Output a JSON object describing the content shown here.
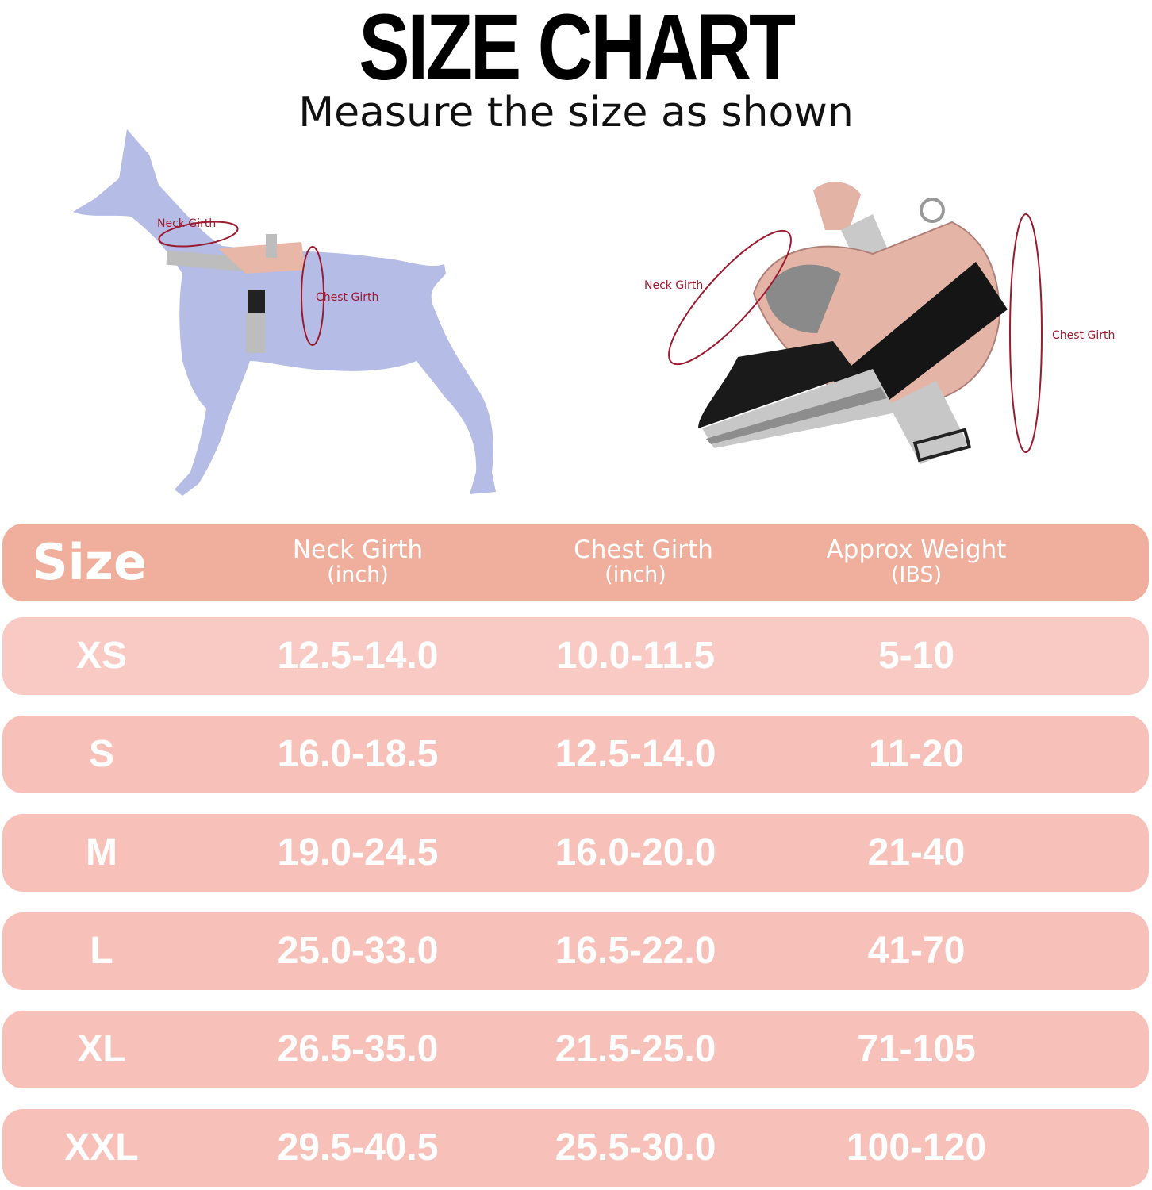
{
  "header": {
    "title": "SIZE CHART",
    "subtitle": "Measure the size as shown"
  },
  "illustrations": {
    "dog": {
      "neck_label": "Neck Girth",
      "chest_label": "Chest Girth",
      "color": "#b5bce6"
    },
    "harness": {
      "neck_label": "Neck Girth",
      "chest_label": "Chest Girth"
    },
    "label_color": "#9b1b30"
  },
  "table": {
    "columns": [
      {
        "label": "Size",
        "unit": ""
      },
      {
        "label": "Neck Girth",
        "unit": "(inch)"
      },
      {
        "label": "Chest Girth",
        "unit": "(inch)"
      },
      {
        "label": "Approx Weight",
        "unit": "(IBS)"
      }
    ],
    "rows": [
      {
        "size": "XS",
        "neck": "12.5-14.0",
        "chest": "10.0-11.5",
        "weight": "5-10"
      },
      {
        "size": "S",
        "neck": "16.0-18.5",
        "chest": "12.5-14.0",
        "weight": "11-20"
      },
      {
        "size": "M",
        "neck": "19.0-24.5",
        "chest": "16.0-20.0",
        "weight": "21-40"
      },
      {
        "size": "L",
        "neck": "25.0-33.0",
        "chest": "16.5-22.0",
        "weight": "41-70"
      },
      {
        "size": "XL",
        "neck": "26.5-35.0",
        "chest": "21.5-25.0",
        "weight": "71-105"
      },
      {
        "size": "XXL",
        "neck": "29.5-40.5",
        "chest": "25.5-30.0",
        "weight": "100-120"
      }
    ],
    "header_color": "#efaf9c",
    "row_color": "#f7c1b9"
  }
}
